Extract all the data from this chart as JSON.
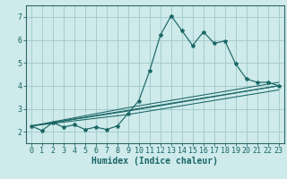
{
  "xlabel": "Humidex (Indice chaleur)",
  "bg_color": "#ceeaea",
  "grid_color": "#a0c8c8",
  "line_color": "#1a6666",
  "spine_color": "#336666",
  "xlim": [
    -0.5,
    23.5
  ],
  "ylim": [
    1.5,
    7.5
  ],
  "xticks": [
    0,
    1,
    2,
    3,
    4,
    5,
    6,
    7,
    8,
    9,
    10,
    11,
    12,
    13,
    14,
    15,
    16,
    17,
    18,
    19,
    20,
    21,
    22,
    23
  ],
  "yticks": [
    2,
    3,
    4,
    5,
    6,
    7
  ],
  "main_x": [
    0,
    1,
    2,
    3,
    4,
    5,
    6,
    7,
    8,
    9,
    10,
    11,
    12,
    13,
    14,
    15,
    16,
    17,
    18,
    19,
    20,
    21,
    22,
    23
  ],
  "main_y": [
    2.25,
    2.05,
    2.4,
    2.2,
    2.3,
    2.1,
    2.2,
    2.1,
    2.25,
    2.8,
    3.35,
    4.65,
    6.2,
    7.05,
    6.4,
    5.75,
    6.35,
    5.85,
    5.95,
    4.95,
    4.3,
    4.15,
    4.15,
    4.0
  ],
  "trend1_x": [
    0,
    23
  ],
  "trend1_y": [
    2.25,
    4.0
  ],
  "trend2_x": [
    0,
    9,
    23
  ],
  "trend2_y": [
    2.25,
    2.9,
    4.0
  ],
  "trend3_x": [
    0,
    9,
    23
  ],
  "trend3_y": [
    2.25,
    3.05,
    4.15
  ],
  "trend4_x": [
    0,
    9,
    23
  ],
  "trend4_y": [
    2.25,
    2.75,
    3.82
  ],
  "lw_main": 0.85,
  "lw_trend": 0.75,
  "marker_size": 3.0,
  "tick_fontsize": 6.0,
  "xlabel_fontsize": 7.0
}
